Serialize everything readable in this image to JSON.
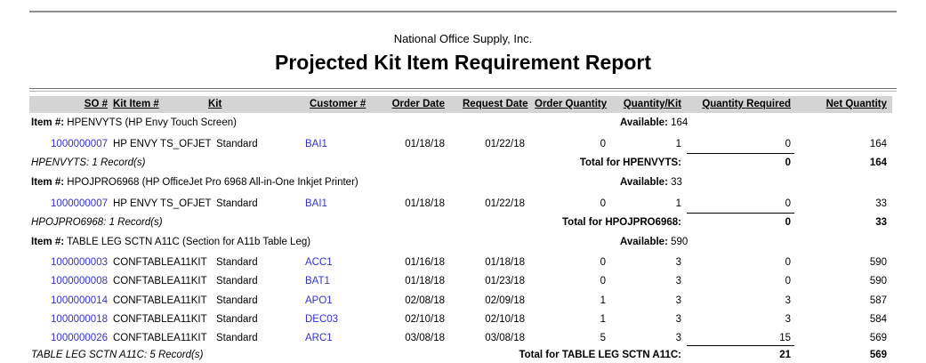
{
  "report": {
    "company": "National Office Supply, Inc.",
    "title": "Projected Kit Item Requirement Report"
  },
  "colors": {
    "link_blue": "#3333CC",
    "header_bar_gray": "#D4D4D4",
    "rule_gray_dark": "#6F6F6F",
    "rule_gray_light": "#B5B5B5",
    "top_rule_gray": "#8E8E8E",
    "sum_line_black": "#000000"
  },
  "table": {
    "item_label": "Item #:",
    "available_label": "Available:",
    "columns": [
      {
        "id": "so",
        "label": "SO #"
      },
      {
        "id": "kitItem",
        "label": "Kit Item #"
      },
      {
        "id": "kit",
        "label": "Kit"
      },
      {
        "id": "customer",
        "label": "Customer #"
      },
      {
        "id": "orderDate",
        "label": "Order Date"
      },
      {
        "id": "requestDate",
        "label": "Request Date"
      },
      {
        "id": "orderQty",
        "label": "Order Quantity"
      },
      {
        "id": "qtyKit",
        "label": "Quantity/Kit"
      },
      {
        "id": "qtyReq",
        "label": "Quantity Required"
      },
      {
        "id": "netQty",
        "label": "Net Quantity"
      }
    ],
    "groups": [
      {
        "item": "HPENVYTS (HP Envy Touch Screen)",
        "available": "164",
        "rows": [
          {
            "so": "1000000007",
            "kitItem": "HP ENVY TS_OFJET",
            "kit": "Standard",
            "customer": "BAI1",
            "orderDate": "01/18/18",
            "requestDate": "01/22/18",
            "orderQty": "0",
            "qtyKit": "1",
            "qtyReq": "0",
            "netQty": "164"
          }
        ],
        "records": "HPENVYTS: 1 Record(s)",
        "total_label": "Total for HPENVYTS:",
        "total_qty_required": "0",
        "total_net_quantity": "164"
      },
      {
        "item": "HPOJPRO6968 (HP OfficeJet Pro 6968 All-in-One Inkjet Printer)",
        "available": "33",
        "rows": [
          {
            "so": "1000000007",
            "kitItem": "HP ENVY TS_OFJET",
            "kit": "Standard",
            "customer": "BAI1",
            "orderDate": "01/18/18",
            "requestDate": "01/22/18",
            "orderQty": "0",
            "qtyKit": "1",
            "qtyReq": "0",
            "netQty": "33"
          }
        ],
        "records": "HPOJPRO6968: 1 Record(s)",
        "total_label": "Total for HPOJPRO6968:",
        "total_qty_required": "0",
        "total_net_quantity": "33"
      },
      {
        "item": "TABLE LEG SCTN A11C (Section for A11b Table Leg)",
        "available": "590",
        "rows": [
          {
            "so": "1000000003",
            "kitItem": "CONFTABLEA11KIT",
            "kit": "Standard",
            "customer": "ACC1",
            "orderDate": "01/16/18",
            "requestDate": "01/18/18",
            "orderQty": "0",
            "qtyKit": "3",
            "qtyReq": "0",
            "netQty": "590"
          },
          {
            "so": "1000000008",
            "kitItem": "CONFTABLEA11KIT",
            "kit": "Standard",
            "customer": "BAT1",
            "orderDate": "01/18/18",
            "requestDate": "01/23/18",
            "orderQty": "0",
            "qtyKit": "3",
            "qtyReq": "0",
            "netQty": "590"
          },
          {
            "so": "1000000014",
            "kitItem": "CONFTABLEA11KIT",
            "kit": "Standard",
            "customer": "APO1",
            "orderDate": "02/08/18",
            "requestDate": "02/09/18",
            "orderQty": "1",
            "qtyKit": "3",
            "qtyReq": "3",
            "netQty": "587"
          },
          {
            "so": "1000000018",
            "kitItem": "CONFTABLEA11KIT",
            "kit": "Standard",
            "customer": "DEC03",
            "orderDate": "02/10/18",
            "requestDate": "02/10/18",
            "orderQty": "1",
            "qtyKit": "3",
            "qtyReq": "3",
            "netQty": "584"
          },
          {
            "so": "1000000026",
            "kitItem": "CONFTABLEA11KIT",
            "kit": "Standard",
            "customer": "ARC1",
            "orderDate": "03/08/18",
            "requestDate": "03/08/18",
            "orderQty": "5",
            "qtyKit": "3",
            "qtyReq": "15",
            "netQty": "569"
          }
        ],
        "records": "TABLE LEG SCTN A11C: 5 Record(s)",
        "total_label": "Total for TABLE LEG SCTN A11C:",
        "total_qty_required": "21",
        "total_net_quantity": "569"
      }
    ]
  }
}
